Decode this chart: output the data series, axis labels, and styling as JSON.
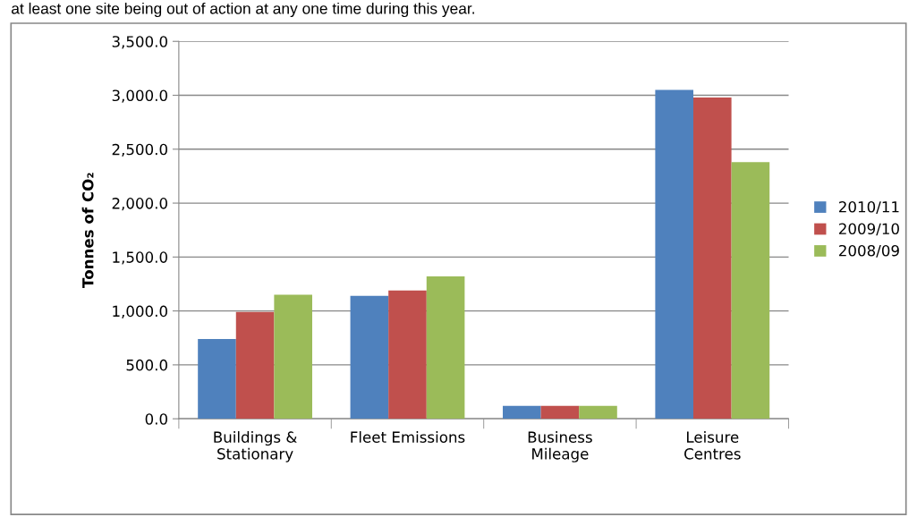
{
  "chart_data": {
    "type": "bar",
    "annotations": [
      "at least one site being out of action at any one time during this year."
    ],
    "ylabel": "Tonnes of CO₂",
    "categories": [
      "Buildings &\nStationary",
      "Fleet Emissions",
      "Business\nMileage",
      "Leisure\nCentres"
    ],
    "series": [
      {
        "name": "2010/11",
        "color": "#4f81bd",
        "values": [
          740,
          1140,
          120,
          3050
        ]
      },
      {
        "name": "2009/10",
        "color": "#c0504d",
        "values": [
          990,
          1190,
          120,
          2980
        ]
      },
      {
        "name": "2008/09",
        "color": "#9bbb59",
        "values": [
          1150,
          1320,
          120,
          2380
        ]
      }
    ],
    "ylim": [
      0,
      3500
    ],
    "yticks": [
      {
        "value": 0,
        "label": "0.0"
      },
      {
        "value": 500,
        "label": "500.0"
      },
      {
        "value": 1000,
        "label": "1,000.0"
      },
      {
        "value": 1500,
        "label": "1,500.0"
      },
      {
        "value": 2000,
        "label": "2,000.0"
      },
      {
        "value": 2500,
        "label": "2,500.0"
      },
      {
        "value": 3000,
        "label": "3,000.0"
      },
      {
        "value": 3500,
        "label": "3,500.0"
      }
    ],
    "grid": "y",
    "legend": "right"
  }
}
